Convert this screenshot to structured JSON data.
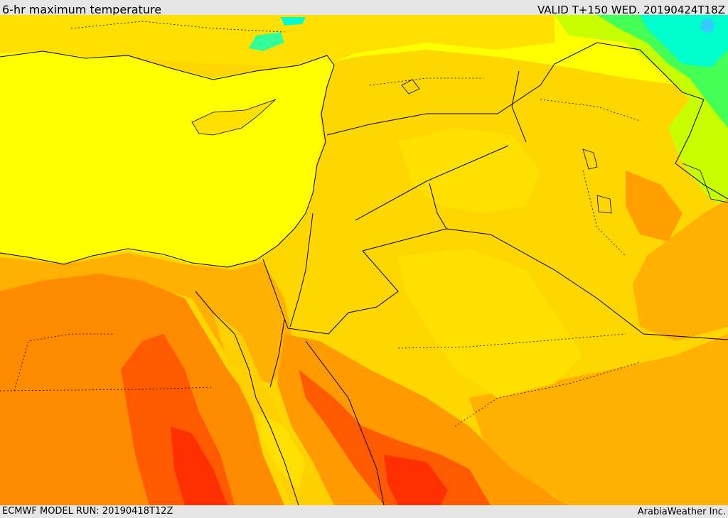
{
  "header": {
    "title": "6-hr maximum temperature",
    "valid": "VALID T+150 WED. 20190424T18Z"
  },
  "footer": {
    "model_run": "ECMWF MODEL RUN: 20190418T12Z",
    "credit": "ArabiaWeather Inc."
  },
  "colors": {
    "sea_and_cool": "#ffff00",
    "warm_yellow": "#ffd700",
    "orange_light": "#ffb000",
    "orange": "#ff8c00",
    "orange_red": "#ff5a00",
    "red": "#ff2800",
    "lime": "#c8ff00",
    "green": "#33ff66",
    "cyan": "#00ffcc",
    "frame": "#e6e6e6"
  }
}
